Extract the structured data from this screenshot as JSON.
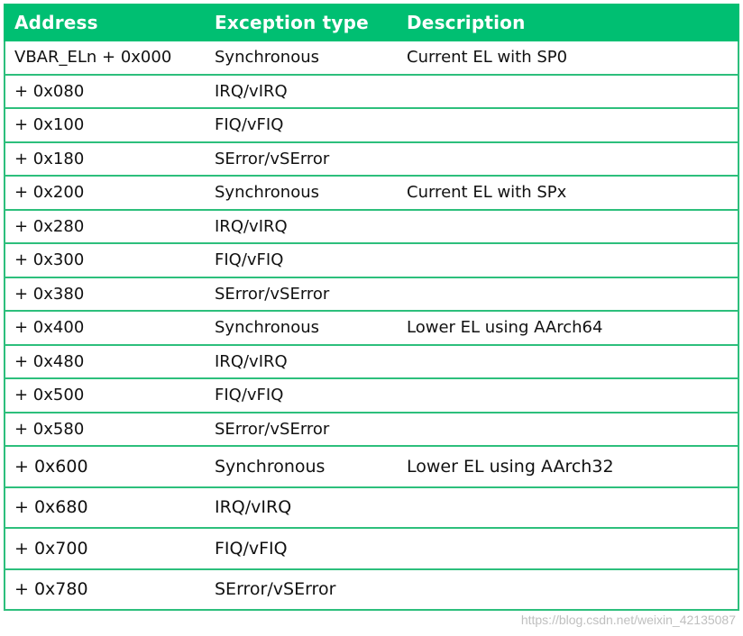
{
  "header": {
    "address": "Address",
    "exception_type": "Exception type",
    "description": "Description"
  },
  "rows": [
    {
      "address": "VBAR_ELn + 0x000",
      "type": "Synchronous",
      "description": "Current EL with SP0"
    },
    {
      "address": "+ 0x080",
      "type": "IRQ/vIRQ",
      "description": ""
    },
    {
      "address": "+ 0x100",
      "type": "FIQ/vFIQ",
      "description": ""
    },
    {
      "address": "+ 0x180",
      "type": "SError/vSError",
      "description": ""
    },
    {
      "address": "+ 0x200",
      "type": "Synchronous",
      "description": "Current EL with SPx"
    },
    {
      "address": "+ 0x280",
      "type": "IRQ/vIRQ",
      "description": ""
    },
    {
      "address": "+ 0x300",
      "type": "FIQ/vFIQ",
      "description": ""
    },
    {
      "address": "+ 0x380",
      "type": "SError/vSError",
      "description": ""
    },
    {
      "address": "+ 0x400",
      "type": "Synchronous",
      "description": "Lower EL using AArch64"
    },
    {
      "address": "+ 0x480",
      "type": "IRQ/vIRQ",
      "description": ""
    },
    {
      "address": "+ 0x500",
      "type": "FIQ/vFIQ",
      "description": ""
    },
    {
      "address": "+ 0x580",
      "type": "SError/vSError",
      "description": ""
    },
    {
      "address": "+ 0x600",
      "type": "Synchronous",
      "description": "Lower EL using AArch32"
    },
    {
      "address": "+ 0x680",
      "type": "IRQ/vIRQ",
      "description": ""
    },
    {
      "address": "+ 0x700",
      "type": "FIQ/vFIQ",
      "description": ""
    },
    {
      "address": "+ 0x780",
      "type": "SError/vSError",
      "description": ""
    }
  ],
  "watermark": "https://blog.csdn.net/weixin_42135087",
  "colors": {
    "header_bg": "#00bf72",
    "border": "#2dbf7c"
  }
}
